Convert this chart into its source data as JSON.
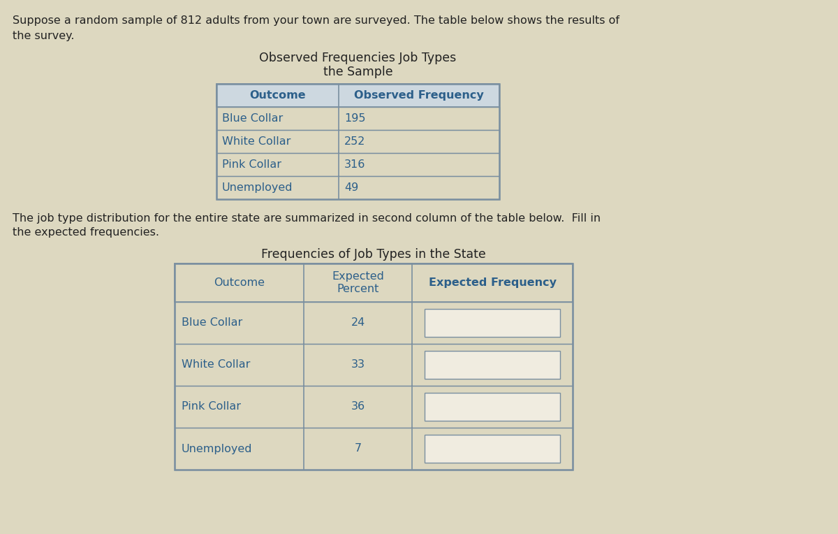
{
  "background_color": "#ddd8c0",
  "intro_text_line1": "Suppose a random sample of 812 adults from your town are surveyed. The table below shows the results of",
  "intro_text_line2": "the survey.",
  "table1_title_line1": "Observed Frequencies Job Types",
  "table1_title_line2": "the Sample",
  "table1_headers": [
    "Outcome",
    "Observed Frequency"
  ],
  "table1_rows": [
    [
      "Blue Collar",
      "195"
    ],
    [
      "White Collar",
      "252"
    ],
    [
      "Pink Collar",
      "316"
    ],
    [
      "Unemployed",
      "49"
    ]
  ],
  "middle_text_line1": "The job type distribution for the entire state are summarized in second column of the table below.  Fill in",
  "middle_text_line2": "the expected frequencies.",
  "table2_title": "Frequencies of Job Types in the State",
  "table2_headers": [
    "Outcome",
    "Expected\nPercent",
    "Expected Frequency"
  ],
  "table2_rows": [
    [
      "Blue Collar",
      "24",
      ""
    ],
    [
      "White Collar",
      "33",
      ""
    ],
    [
      "Pink Collar",
      "36",
      ""
    ],
    [
      "Unemployed",
      "7",
      ""
    ]
  ],
  "header_text_color": "#2c5f8a",
  "body_text_color": "#2c5f8a",
  "table_border_color": "#7a8fa0",
  "header_bg_color": "#cdd8e0",
  "cell_bg_color": "#ddd8c0",
  "input_box_color": "#f0ece0",
  "text_color": "#222222",
  "title_fontsize": 12.5,
  "body_fontsize": 11.5,
  "cell_fontsize": 11.5
}
